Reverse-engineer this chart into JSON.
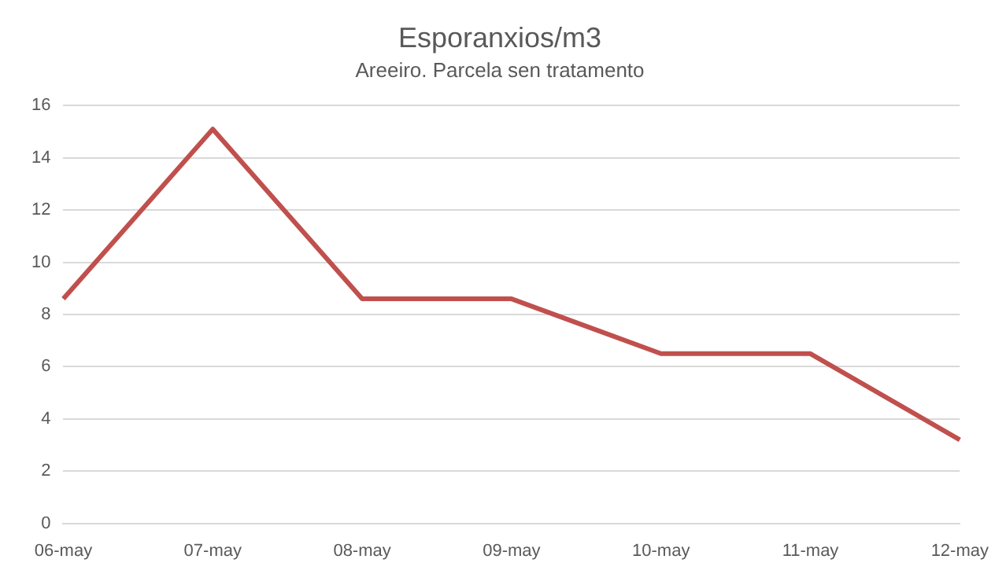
{
  "chart_data": {
    "type": "line",
    "title": "Esporanxios/m3",
    "subtitle": "Areeiro. Parcela sen tratamento",
    "categories": [
      "06-may",
      "07-may",
      "08-may",
      "09-may",
      "10-may",
      "11-may",
      "12-may"
    ],
    "series": [
      {
        "color": "#c0504d",
        "values": [
          8.6,
          15.1,
          8.6,
          8.6,
          6.5,
          6.5,
          3.2
        ]
      }
    ],
    "ylim": [
      0,
      16
    ],
    "yticks": [
      0,
      2,
      4,
      6,
      8,
      10,
      12,
      14,
      16
    ],
    "grid": "y",
    "legend": false,
    "marker": "none",
    "line_style": "solid"
  }
}
